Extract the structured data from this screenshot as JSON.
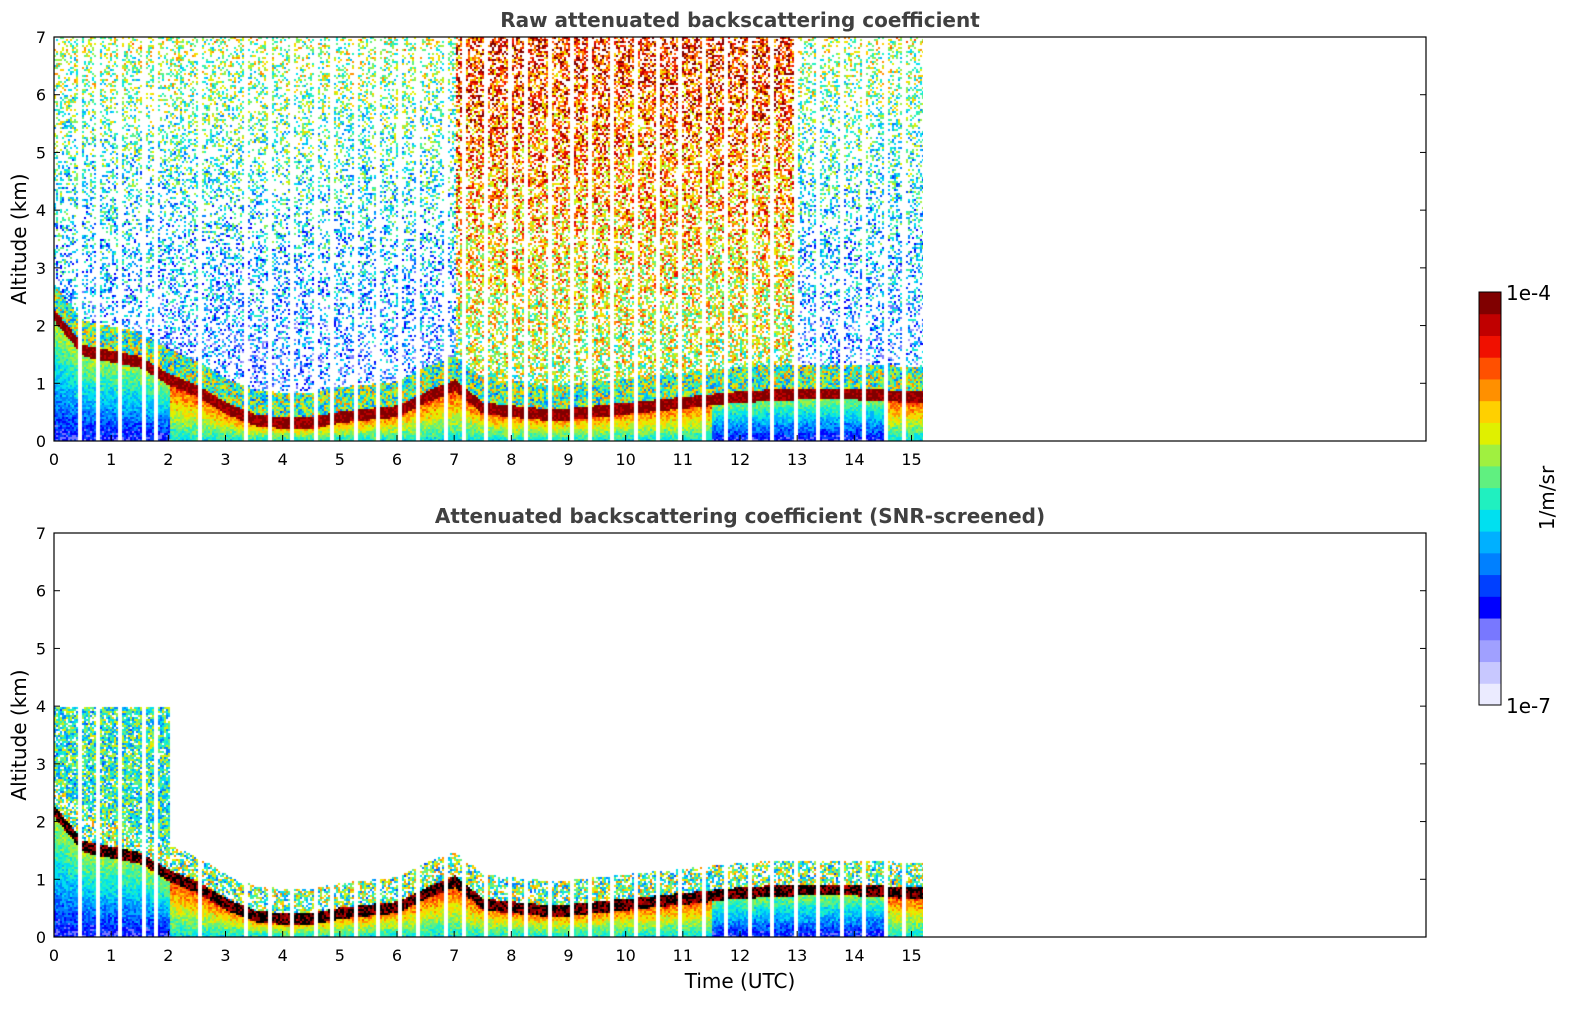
{
  "chart_data": [
    {
      "type": "heatmap",
      "title": "Raw attenuated backscattering coefficient",
      "xlabel": "",
      "ylabel": "Altitude (km)",
      "xlim": [
        0,
        24
      ],
      "ylim": [
        0,
        7
      ],
      "xticks": [
        "0",
        "1",
        "2",
        "3",
        "4",
        "5",
        "6",
        "7",
        "8",
        "9",
        "10",
        "11",
        "12",
        "13",
        "14",
        "15"
      ],
      "yticks": [
        "0",
        "1",
        "2",
        "3",
        "4",
        "5",
        "6",
        "7"
      ],
      "data_extent_x": [
        0,
        15.2
      ],
      "layer_top_km": [
        [
          0,
          2.2
        ],
        [
          0.5,
          1.6
        ],
        [
          1,
          1.5
        ],
        [
          1.5,
          1.4
        ],
        [
          2,
          1.1
        ],
        [
          2.5,
          0.9
        ],
        [
          3,
          0.6
        ],
        [
          3.5,
          0.4
        ],
        [
          4,
          0.35
        ],
        [
          4.5,
          0.35
        ],
        [
          5,
          0.45
        ],
        [
          5.5,
          0.5
        ],
        [
          6,
          0.55
        ],
        [
          6.5,
          0.8
        ],
        [
          7,
          1.0
        ],
        [
          7.5,
          0.6
        ],
        [
          8,
          0.55
        ],
        [
          8.5,
          0.5
        ],
        [
          9,
          0.5
        ],
        [
          9.5,
          0.55
        ],
        [
          10,
          0.6
        ],
        [
          11,
          0.7
        ],
        [
          12,
          0.8
        ],
        [
          13,
          0.85
        ],
        [
          14,
          0.85
        ],
        [
          15,
          0.8
        ]
      ],
      "noise_level": "high",
      "gap_columns": [
        0.45,
        0.75,
        1.15,
        1.55,
        1.75,
        2.55,
        3.35,
        3.75,
        4.15,
        4.55,
        4.85,
        5.25,
        5.65,
        6.05,
        6.35,
        6.85,
        7.15,
        7.55,
        7.95,
        8.25,
        8.65,
        9.05,
        9.35,
        9.75,
        10.15,
        10.55,
        10.95,
        11.35,
        11.75,
        12.15,
        12.55,
        12.95,
        13.35,
        13.75,
        14.15,
        14.55,
        14.85
      ]
    },
    {
      "type": "heatmap",
      "title": "Attenuated backscattering coefficient (SNR-screened)",
      "xlabel": "Time (UTC)",
      "ylabel": "Altitude (km)",
      "xlim": [
        0,
        24
      ],
      "ylim": [
        0,
        7
      ],
      "xticks": [
        "0",
        "1",
        "2",
        "3",
        "4",
        "5",
        "6",
        "7",
        "8",
        "9",
        "10",
        "11",
        "12",
        "13",
        "14",
        "15"
      ],
      "yticks": [
        "0",
        "1",
        "2",
        "3",
        "4",
        "5",
        "6",
        "7"
      ],
      "data_extent_x": [
        0,
        15.2
      ],
      "layer_top_km": [
        [
          0,
          2.2
        ],
        [
          0.5,
          1.6
        ],
        [
          1,
          1.5
        ],
        [
          1.5,
          1.4
        ],
        [
          2,
          1.1
        ],
        [
          2.5,
          0.9
        ],
        [
          3,
          0.6
        ],
        [
          3.5,
          0.4
        ],
        [
          4,
          0.35
        ],
        [
          4.5,
          0.35
        ],
        [
          5,
          0.45
        ],
        [
          5.5,
          0.5
        ],
        [
          6,
          0.55
        ],
        [
          6.5,
          0.8
        ],
        [
          7,
          1.0
        ],
        [
          7.5,
          0.6
        ],
        [
          8,
          0.55
        ],
        [
          8.5,
          0.5
        ],
        [
          9,
          0.5
        ],
        [
          9.5,
          0.55
        ],
        [
          10,
          0.6
        ],
        [
          11,
          0.7
        ],
        [
          12,
          0.8
        ],
        [
          13,
          0.85
        ],
        [
          14,
          0.85
        ],
        [
          15,
          0.8
        ]
      ],
      "noise_level": "screened",
      "gap_columns": [
        0.45,
        0.75,
        1.15,
        1.55,
        1.75,
        2.55,
        3.35,
        3.75,
        4.15,
        4.55,
        4.85,
        5.25,
        5.65,
        6.05,
        6.35,
        6.85,
        7.15,
        7.55,
        7.95,
        8.25,
        8.65,
        9.05,
        9.35,
        9.75,
        10.15,
        10.55,
        10.95,
        11.35,
        11.75,
        12.15,
        12.55,
        12.95,
        13.35,
        13.75,
        14.15,
        14.55,
        14.85
      ]
    }
  ],
  "colorbar": {
    "max_label": "1e-4",
    "min_label": "1e-7",
    "unit_label": "1/m/sr",
    "colors": [
      "#ebebff",
      "#c8c8ff",
      "#a0a0ff",
      "#7878ff",
      "#0000ff",
      "#0040ff",
      "#0080ff",
      "#00b0ff",
      "#00e0f0",
      "#20f0c0",
      "#60f080",
      "#a0f040",
      "#e0f000",
      "#ffd000",
      "#ff9000",
      "#ff5000",
      "#f01000",
      "#c00000",
      "#800000"
    ]
  }
}
